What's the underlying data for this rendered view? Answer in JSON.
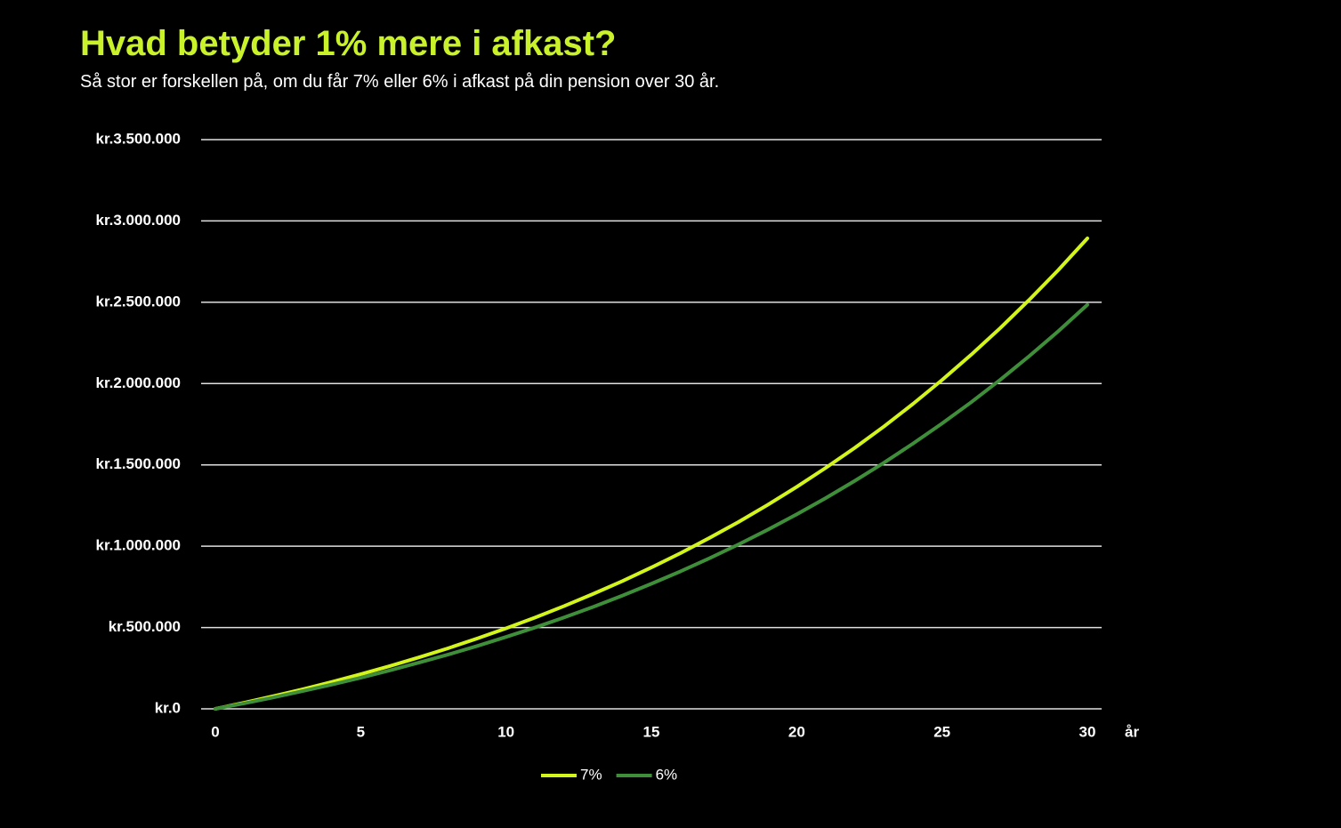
{
  "chart_data": {
    "type": "line",
    "title": "Hvad betyder 1% mere i afkast?",
    "subtitle": "Så stor er forskellen på, om du får 7% eller 6% i afkast på din pension over 30 år.",
    "x_label": "år",
    "x": [
      0,
      1,
      2,
      3,
      4,
      5,
      6,
      7,
      8,
      9,
      10,
      11,
      12,
      13,
      14,
      15,
      16,
      17,
      18,
      19,
      20,
      21,
      22,
      23,
      24,
      25,
      26,
      27,
      28,
      29,
      30
    ],
    "series": [
      {
        "name": "7%",
        "color": "#d4f51c",
        "values": [
          0,
          37900,
          78000,
          120000,
          165000,
          213000,
          263000,
          316000,
          372000,
          432000,
          495000,
          561000,
          632000,
          707000,
          785000,
          869000,
          957000,
          1051000,
          1149000,
          1254000,
          1365000,
          1482000,
          1605000,
          1736000,
          1875000,
          2022000,
          2177000,
          2341000,
          2515000,
          2698000,
          2893000
        ]
      },
      {
        "name": "6%",
        "color": "#3f8f3a",
        "values": [
          0,
          34000,
          70000,
          109000,
          149000,
          191000,
          236000,
          284000,
          333000,
          386000,
          442000,
          500000,
          562000,
          627000,
          696000,
          769000,
          845000,
          926000,
          1011000,
          1101000,
          1196000,
          1296000,
          1402000,
          1513000,
          1631000,
          1755000,
          1885000,
          2023000,
          2169000,
          2322000,
          2485000
        ]
      }
    ],
    "xlim": [
      0,
      30
    ],
    "xticks": [
      0,
      5,
      10,
      15,
      20,
      25,
      30
    ],
    "ylim": [
      0,
      3500000
    ],
    "yticks": [
      {
        "value": 0,
        "label": "kr.0"
      },
      {
        "value": 500000,
        "label": "kr.500.000"
      },
      {
        "value": 1000000,
        "label": "kr.1.000.000"
      },
      {
        "value": 1500000,
        "label": "kr.1.500.000"
      },
      {
        "value": 2000000,
        "label": "kr.2.000.000"
      },
      {
        "value": 2500000,
        "label": "kr.2.500.000"
      },
      {
        "value": 3000000,
        "label": "kr.3.000.000"
      },
      {
        "value": 3500000,
        "label": "kr.3.500.000"
      }
    ],
    "grid": true,
    "legend": "bottom"
  }
}
